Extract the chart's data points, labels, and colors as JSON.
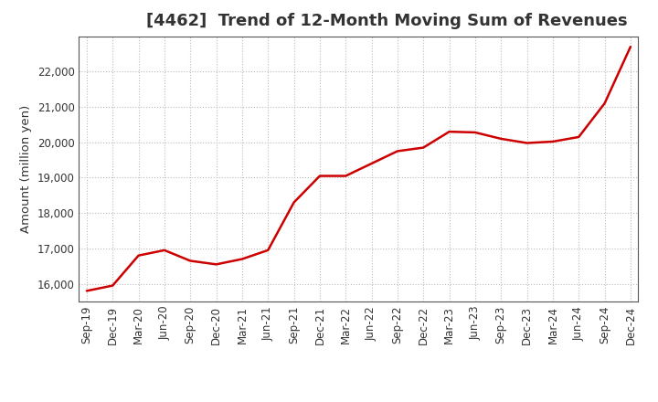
{
  "title": "[4462]  Trend of 12-Month Moving Sum of Revenues",
  "ylabel": "Amount (million yen)",
  "background_color": "#ffffff",
  "line_color": "#cc0000",
  "grid_color": "#bbbbbb",
  "x_labels": [
    "Sep-19",
    "Dec-19",
    "Mar-20",
    "Jun-20",
    "Sep-20",
    "Dec-20",
    "Mar-21",
    "Jun-21",
    "Sep-21",
    "Dec-21",
    "Mar-22",
    "Jun-22",
    "Sep-22",
    "Dec-22",
    "Mar-23",
    "Jun-23",
    "Sep-23",
    "Dec-23",
    "Mar-24",
    "Jun-24",
    "Sep-24",
    "Dec-24"
  ],
  "y_values": [
    15800,
    15950,
    16800,
    16950,
    16650,
    16550,
    16700,
    16950,
    18300,
    19050,
    19050,
    19400,
    19750,
    19850,
    20300,
    20280,
    20100,
    19980,
    20020,
    20150,
    21100,
    22700
  ],
  "ylim": [
    15500,
    23000
  ],
  "yticks": [
    16000,
    17000,
    18000,
    19000,
    20000,
    21000,
    22000
  ],
  "title_fontsize": 13,
  "axis_fontsize": 9.5,
  "tick_fontsize": 8.5
}
